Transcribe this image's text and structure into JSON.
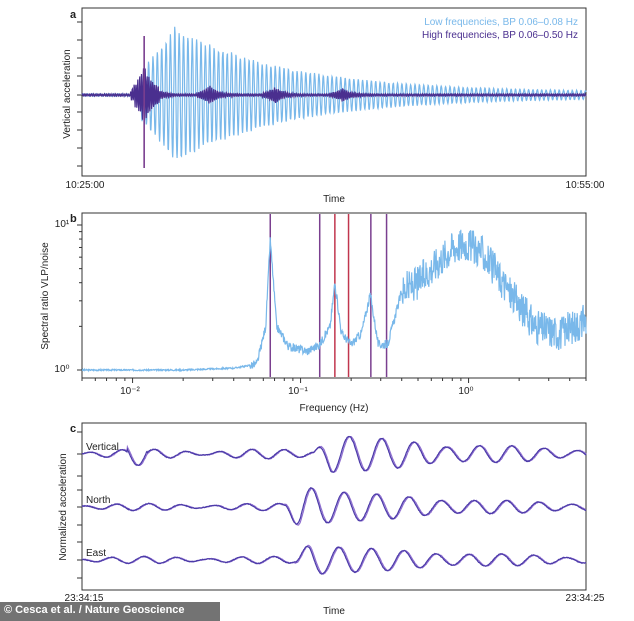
{
  "colors": {
    "low": "#79b8ea",
    "high": "#4a2f8f",
    "axis": "#333333",
    "vline_purple": "#7a3f8f",
    "vline_red": "#c1364e",
    "trace_a": "#4b3aa8",
    "trace_b": "#8f6fd0"
  },
  "credit": "© Cesca et al. / Nature Geoscience",
  "chart_data": [
    {
      "panel": "a",
      "type": "line",
      "xlabel": "Time",
      "ylabel": "Vertical acceleration",
      "x_start_label": "10:25:00",
      "x_end_label": "10:55:00",
      "xlim_minutes": [
        0,
        30
      ],
      "event_marker_minutes": 3.7,
      "legend": {
        "position": "top-right",
        "entries": [
          {
            "name": "Low frequencies, BP 0.06–0.08 Hz",
            "color": "#79b8ea"
          },
          {
            "name": "High frequencies, BP 0.06–0.50 Hz",
            "color": "#4a2f8f"
          }
        ]
      },
      "series": [
        {
          "name": "Low frequencies, BP 0.06–0.08 Hz",
          "onset_minutes": 3.5,
          "peak_minutes": 5.5,
          "peak_amplitude": 0.92,
          "period_minutes": 0.26
        },
        {
          "name": "High frequencies, BP 0.06–0.50 Hz",
          "onset_minutes": 3.1,
          "peak_minutes": 3.7,
          "peak_amplitude": 0.95,
          "repeats_minutes": [
            3.7,
            7.6,
            11.5,
            15.5
          ]
        }
      ]
    },
    {
      "panel": "b",
      "type": "line",
      "xscale": "log",
      "yscale": "log",
      "xlabel": "Frequency (Hz)",
      "ylabel": "Spectral ratio VLP/noise",
      "xlim": [
        0.005,
        5
      ],
      "ylim": [
        1,
        10
      ],
      "xticks": [
        {
          "value": 0.01,
          "label": "10⁻²"
        },
        {
          "value": 0.1,
          "label": "10⁻¹"
        },
        {
          "value": 1,
          "label": "10⁰"
        }
      ],
      "yticks": [
        {
          "value": 1,
          "label": "10⁰"
        },
        {
          "value": 10,
          "label": "10¹"
        }
      ],
      "peak_lines_purple_hz": [
        0.066,
        0.13,
        0.262,
        0.325
      ],
      "peak_lines_red_hz": [
        0.16,
        0.193
      ],
      "spectrum": {
        "freq_hz": [
          0.005,
          0.02,
          0.04,
          0.055,
          0.062,
          0.066,
          0.072,
          0.085,
          0.11,
          0.13,
          0.15,
          0.16,
          0.175,
          0.2,
          0.23,
          0.26,
          0.29,
          0.33,
          0.4,
          0.5,
          0.6,
          0.8,
          0.95,
          1.2,
          1.8,
          2.5,
          3.5,
          5
        ],
        "ratio": [
          1.0,
          1.0,
          1.03,
          1.1,
          2.0,
          8.0,
          2.0,
          1.45,
          1.35,
          1.5,
          2.0,
          4.0,
          1.8,
          1.5,
          1.8,
          3.3,
          1.5,
          1.5,
          3.5,
          4.0,
          5.0,
          7.0,
          7.5,
          6.5,
          3.3,
          2.0,
          1.8,
          2.2
        ]
      }
    },
    {
      "panel": "c",
      "type": "line",
      "xlabel": "Time",
      "ylabel": "Normalized acceleration",
      "x_start_label": "23:34:15",
      "x_end_label": "23:34:25",
      "xlim_seconds": [
        0,
        10
      ],
      "components": [
        {
          "name": "Vertical",
          "onset_seconds": 4.6,
          "peak_amplitude": 0.9
        },
        {
          "name": "North",
          "onset_seconds": 4.0,
          "peak_amplitude": 1.0
        },
        {
          "name": "East",
          "onset_seconds": 4.2,
          "peak_amplitude": 0.75
        }
      ]
    }
  ]
}
